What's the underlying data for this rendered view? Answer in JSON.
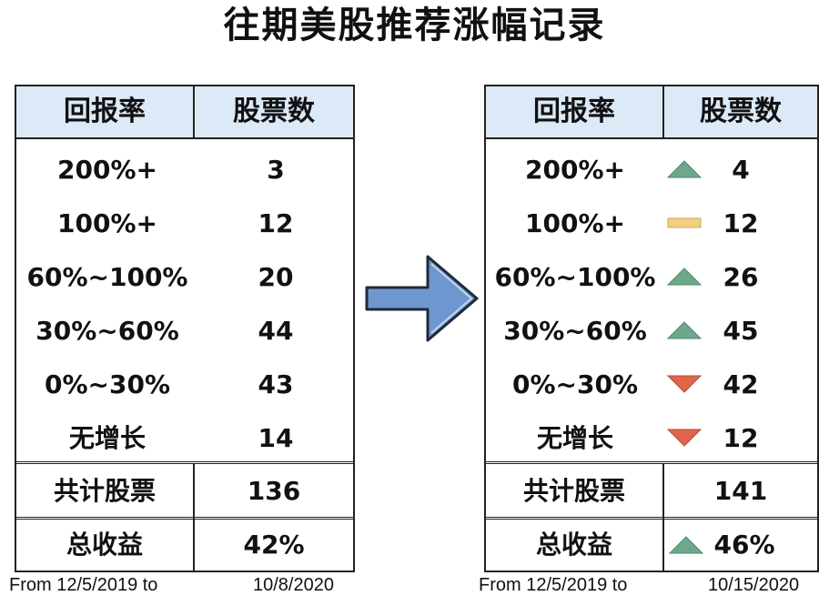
{
  "title": "往期美股推荐涨幅记录",
  "left_table": {
    "header": {
      "col1": "回报率",
      "col2": "股票数"
    },
    "rows": [
      {
        "range": "200%+",
        "count": "3"
      },
      {
        "range": "100%+",
        "count": "12"
      },
      {
        "range": "60%~100%",
        "count": "20"
      },
      {
        "range": "30%~60%",
        "count": "44"
      },
      {
        "range": "0%~30%",
        "count": "43"
      },
      {
        "range": "无增长",
        "count": "14"
      }
    ],
    "total_label": "共计股票",
    "total_value": "136",
    "return_label": "总收益",
    "return_value": "42%",
    "footer_from": "From 12/5/2019 to",
    "footer_to": "10/8/2020"
  },
  "right_table": {
    "header": {
      "col1": "回报率",
      "col2": "股票数"
    },
    "rows": [
      {
        "range": "200%+",
        "count": "4",
        "trend": "up"
      },
      {
        "range": "100%+",
        "count": "12",
        "trend": "flat"
      },
      {
        "range": "60%~100%",
        "count": "26",
        "trend": "up"
      },
      {
        "range": "30%~60%",
        "count": "45",
        "trend": "up"
      },
      {
        "range": "0%~30%",
        "count": "42",
        "trend": "down"
      },
      {
        "range": "无增长",
        "count": "12",
        "trend": "down"
      }
    ],
    "total_label": "共计股票",
    "total_value": "141",
    "return_label": "总收益",
    "return_value": "46%",
    "return_trend": "up",
    "footer_from": "From 12/5/2019 to",
    "footer_to": "10/15/2020"
  },
  "colors": {
    "up": "#6ea88a",
    "flat": "#f2cf7e",
    "down": "#e0654a",
    "header_bg": "#dce9f7",
    "arrow": "#6f97cf"
  },
  "icons": {
    "arrow": "right-arrow-icon",
    "up": "triangle-up-icon",
    "flat": "dash-icon",
    "down": "triangle-down-icon"
  }
}
